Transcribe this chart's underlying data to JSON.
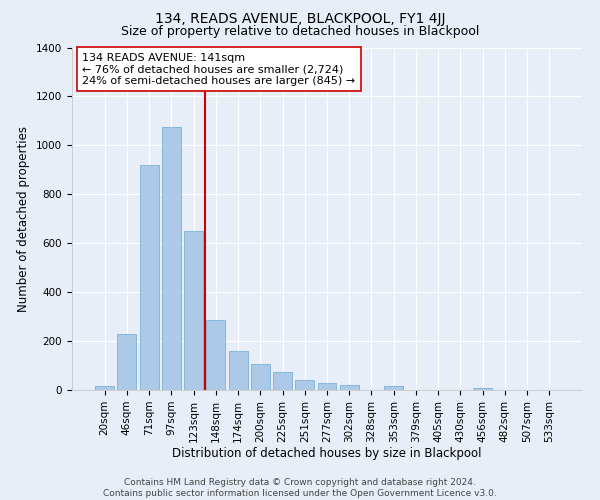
{
  "title": "134, READS AVENUE, BLACKPOOL, FY1 4JJ",
  "subtitle": "Size of property relative to detached houses in Blackpool",
  "xlabel": "Distribution of detached houses by size in Blackpool",
  "ylabel": "Number of detached properties",
  "bar_labels": [
    "20sqm",
    "46sqm",
    "71sqm",
    "97sqm",
    "123sqm",
    "148sqm",
    "174sqm",
    "200sqm",
    "225sqm",
    "251sqm",
    "277sqm",
    "302sqm",
    "328sqm",
    "353sqm",
    "379sqm",
    "405sqm",
    "430sqm",
    "456sqm",
    "482sqm",
    "507sqm",
    "533sqm"
  ],
  "bar_values": [
    15,
    228,
    920,
    1075,
    650,
    285,
    158,
    108,
    72,
    42,
    28,
    22,
    0,
    18,
    0,
    0,
    0,
    10,
    0,
    0,
    0
  ],
  "bar_color": "#adc9e8",
  "bar_edge_color": "#6aaad4",
  "vline_color": "#cc0000",
  "vline_pos": 4.5,
  "annotation_title": "134 READS AVENUE: 141sqm",
  "annotation_line1": "← 76% of detached houses are smaller (2,724)",
  "annotation_line2": "24% of semi-detached houses are larger (845) →",
  "annotation_box_facecolor": "#ffffff",
  "annotation_box_edgecolor": "#cc0000",
  "ylim": [
    0,
    1400
  ],
  "yticks": [
    0,
    200,
    400,
    600,
    800,
    1000,
    1200,
    1400
  ],
  "footer1": "Contains HM Land Registry data © Crown copyright and database right 2024.",
  "footer2": "Contains public sector information licensed under the Open Government Licence v3.0.",
  "bg_color": "#e8eef8",
  "grid_color": "#ffffff",
  "title_fontsize": 10,
  "subtitle_fontsize": 9,
  "axis_label_fontsize": 8.5,
  "tick_fontsize": 7.5,
  "annotation_fontsize": 8,
  "footer_fontsize": 6.5
}
